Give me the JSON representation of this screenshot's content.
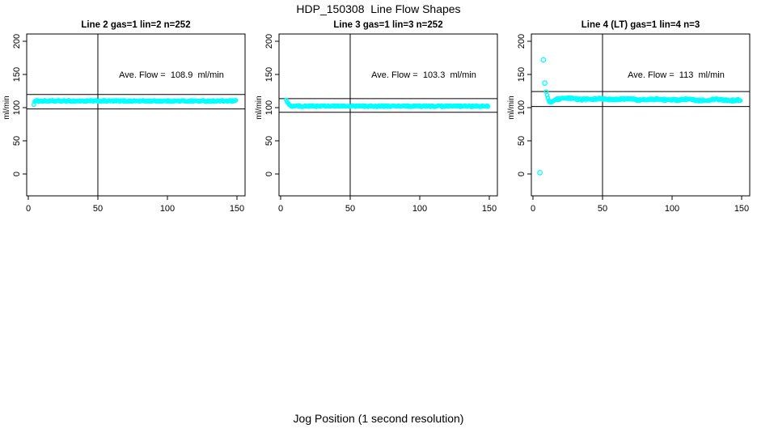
{
  "figure": {
    "title": "HDP_150308  Line Flow Shapes",
    "xlabel": "Jog Position (1 second resolution)"
  },
  "chart_data": {
    "type": "scatter",
    "title": "HDP_150308  Line Flow Shapes",
    "xlabel": "Jog Position (1 second resolution)",
    "ylabel": "ml/min",
    "point_color": "#00ffff",
    "axis_color": "#000000",
    "xlim": [
      0,
      150
    ],
    "ylim": [
      0,
      200
    ],
    "x_ticks": [
      0,
      50,
      100,
      150
    ],
    "y_ticks": [
      0,
      50,
      100,
      150,
      200
    ],
    "legend": "none",
    "grid": "off",
    "panels": [
      {
        "title": "Line 2 gas=1 lin=2 n=252",
        "n": 252,
        "ave_flow": 108.9,
        "annotation": "Ave. Flow =  108.9  ml/min",
        "annotation_at": [
          100,
          150
        ],
        "h_ref_lines": [
          119.8,
          98.0
        ],
        "v_ref_line": 50,
        "series": {
          "x_start": 4.6,
          "x_end": 149.5,
          "x_step": 0.6,
          "level": 110,
          "drift": 0,
          "jitter": 1.0,
          "wobble": 0,
          "head_points": [
            [
              4,
              104.5
            ]
          ],
          "outlier_points": []
        }
      },
      {
        "title": "Line 3 gas=1 lin=3 n=252",
        "n": 252,
        "ave_flow": 103.3,
        "annotation": "Ave. Flow =  103.3  ml/min",
        "annotation_at": [
          100,
          150
        ],
        "h_ref_lines": [
          113.6,
          93.0
        ],
        "v_ref_line": 50,
        "series": {
          "x_start": 7.6,
          "x_end": 149.5,
          "x_step": 0.6,
          "level": 102.3,
          "drift": -0.3,
          "jitter": 1.0,
          "wobble": 0,
          "head_points": [
            [
              4,
              111.5
            ],
            [
              4.6,
              109.0
            ],
            [
              5.2,
              107.0
            ],
            [
              5.8,
              105.3
            ],
            [
              6.4,
              104.0
            ],
            [
              7,
              103.2
            ]
          ],
          "outlier_points": []
        }
      },
      {
        "title": "Line 4 (LT) gas=1 lin=4 n=3",
        "n": 3,
        "ave_flow": 113,
        "annotation": "Ave. Flow =  113  ml/min",
        "annotation_at": [
          100,
          150
        ],
        "h_ref_lines": [
          124.3,
          101.7
        ],
        "v_ref_line": 50,
        "series": {
          "x_start": 17.1,
          "x_end": 149.5,
          "x_step": 0.6,
          "level": 113.2,
          "drift": -2.0,
          "jitter": 1.4,
          "wobble": 0.6,
          "head_points": [
            [
              9.5,
              124
            ],
            [
              10.1,
              119
            ],
            [
              10.7,
              114.5
            ],
            [
              11.3,
              111
            ],
            [
              11.9,
              109
            ],
            [
              12.5,
              108
            ],
            [
              13.3,
              108.4
            ],
            [
              14.1,
              109.4
            ],
            [
              14.9,
              110.4
            ],
            [
              15.7,
              111.4
            ],
            [
              16.5,
              112.3
            ]
          ],
          "outlier_points": [
            [
              7.5,
              172
            ],
            [
              8.5,
              137
            ],
            [
              5,
              2
            ]
          ]
        }
      }
    ]
  }
}
